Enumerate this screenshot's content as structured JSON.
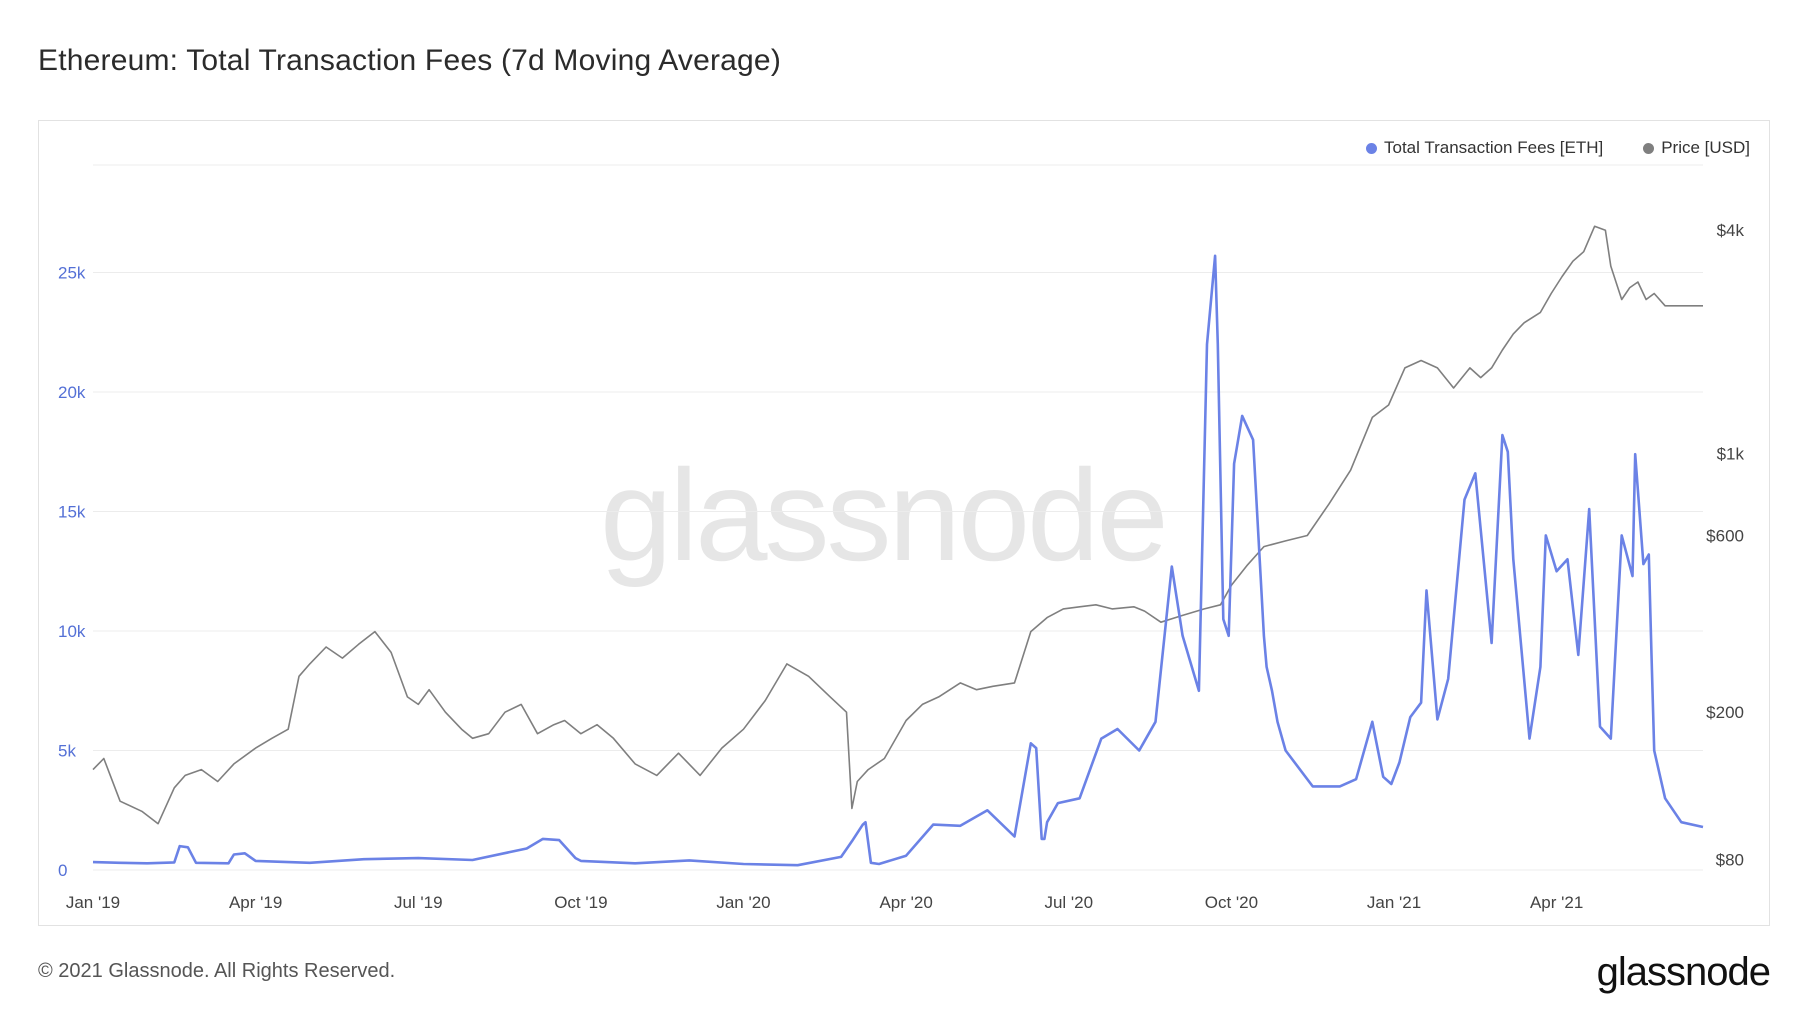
{
  "title": "Ethereum: Total Transaction Fees (7d Moving Average)",
  "watermark": "glassnode",
  "footer": "© 2021 Glassnode. All Rights Reserved.",
  "brand": "glassnode",
  "colors": {
    "fees": "#6b82e6",
    "price": "#7f7f7f",
    "grid": "#ececec",
    "left_axis_text": "#5470d6"
  },
  "chart_data": {
    "type": "line",
    "title": "Ethereum: Total Transaction Fees (7d Moving Average)",
    "x_ticks": [
      "Jan '19",
      "Apr '19",
      "Jul '19",
      "Oct '19",
      "Jan '20",
      "Apr '20",
      "Jul '20",
      "Oct '20",
      "Jan '21",
      "Apr '21"
    ],
    "x_range_months": [
      0,
      29.7
    ],
    "y_left": {
      "label": "Total Transaction Fees [ETH]",
      "ticks": [
        0,
        5000,
        10000,
        15000,
        20000,
        25000
      ],
      "tick_labels": [
        "0",
        "5k",
        "10k",
        "15k",
        "20k",
        "25k"
      ],
      "range": [
        0,
        29500
      ]
    },
    "y_right": {
      "label": "Price [USD]",
      "scale": "log",
      "ticks": [
        80,
        200,
        600,
        1000,
        4000
      ],
      "tick_labels": [
        "$80",
        "$200",
        "$600",
        "$1k",
        "$4k"
      ],
      "range": [
        75,
        6000
      ]
    },
    "legend": [
      {
        "name": "Total Transaction Fees [ETH]",
        "color": "#6b82e6"
      },
      {
        "name": "Price [USD]",
        "color": "#7f7f7f"
      }
    ],
    "series": [
      {
        "name": "Total Transaction Fees [ETH]",
        "axis": "left",
        "x": [
          0,
          0.5,
          1,
          1.5,
          1.6,
          1.75,
          1.9,
          2.5,
          2.6,
          2.8,
          3,
          4,
          5,
          6,
          7,
          8,
          8.3,
          8.6,
          8.9,
          9,
          10,
          11,
          12,
          13,
          13.8,
          14,
          14.2,
          14.25,
          14.35,
          14.5,
          15,
          15.5,
          16,
          16.5,
          17,
          17.3,
          17.4,
          17.5,
          17.55,
          17.6,
          17.8,
          18.2,
          18.6,
          18.9,
          19.3,
          19.6,
          19.9,
          20.1,
          20.4,
          20.55,
          20.7,
          20.75,
          20.85,
          20.95,
          21.05,
          21.2,
          21.4,
          21.6,
          21.65,
          21.75,
          21.85,
          22,
          22.5,
          23,
          23.3,
          23.6,
          23.8,
          23.95,
          24.1,
          24.3,
          24.5,
          24.6,
          24.8,
          25.0,
          25.3,
          25.5,
          25.8,
          26.0,
          26.1,
          26.2,
          26.5,
          26.7,
          26.8,
          27.0,
          27.2,
          27.4,
          27.6,
          27.8,
          28.0,
          28.2,
          28.4,
          28.45,
          28.6,
          28.7,
          28.75,
          28.8,
          29.0,
          29.3,
          29.7
        ],
        "values": [
          330,
          300,
          280,
          320,
          1000,
          950,
          300,
          280,
          650,
          700,
          380,
          300,
          450,
          500,
          420,
          900,
          1300,
          1250,
          500,
          380,
          280,
          400,
          250,
          200,
          550,
          1200,
          1900,
          2000,
          300,
          250,
          600,
          1900,
          1850,
          2500,
          1400,
          5300,
          5100,
          1300,
          1300,
          2000,
          2800,
          3000,
          5500,
          5900,
          5000,
          6200,
          12700,
          9800,
          7500,
          22000,
          25700,
          22000,
          10500,
          9800,
          17000,
          19000,
          18000,
          9800,
          8500,
          7500,
          6200,
          5000,
          3500,
          3500,
          3800,
          6200,
          3900,
          3600,
          4500,
          6400,
          7000,
          11700,
          6300,
          8000,
          15500,
          16600,
          9500,
          18200,
          17500,
          13000,
          5500,
          8500,
          14000,
          12500,
          13000,
          9000,
          15100,
          6000,
          5500,
          14000,
          12300,
          17400,
          12800,
          13200,
          9000,
          5000,
          3000,
          2000,
          1800
        ]
      },
      {
        "name": "Price [USD]",
        "axis": "right",
        "x": [
          0,
          0.2,
          0.5,
          0.9,
          1.2,
          1.5,
          1.7,
          2.0,
          2.3,
          2.6,
          3.0,
          3.3,
          3.6,
          3.8,
          4.0,
          4.3,
          4.6,
          4.9,
          5.2,
          5.5,
          5.8,
          6.0,
          6.2,
          6.5,
          6.8,
          7.0,
          7.3,
          7.6,
          7.9,
          8.2,
          8.5,
          8.7,
          9.0,
          9.3,
          9.6,
          10.0,
          10.4,
          10.8,
          11.2,
          11.6,
          12.0,
          12.4,
          12.8,
          13.2,
          13.6,
          13.9,
          14.0,
          14.1,
          14.3,
          14.6,
          15.0,
          15.3,
          15.6,
          16.0,
          16.3,
          16.6,
          17.0,
          17.3,
          17.6,
          17.9,
          18.2,
          18.5,
          18.8,
          19.2,
          19.4,
          19.7,
          20.1,
          20.5,
          20.8,
          21.0,
          21.3,
          21.6,
          22.0,
          22.4,
          22.8,
          23.2,
          23.6,
          23.9,
          24.2,
          24.5,
          24.8,
          25.1,
          25.4,
          25.6,
          25.8,
          26.0,
          26.2,
          26.4,
          26.7,
          26.9,
          27.1,
          27.3,
          27.5,
          27.7,
          27.9,
          28.0,
          28.2,
          28.35,
          28.5,
          28.65,
          28.8,
          29.0,
          29.2,
          29.5,
          29.7
        ],
        "values": [
          140,
          150,
          115,
          108,
          100,
          125,
          135,
          140,
          130,
          145,
          160,
          170,
          180,
          250,
          270,
          300,
          280,
          305,
          330,
          290,
          220,
          210,
          230,
          200,
          180,
          170,
          175,
          200,
          210,
          175,
          185,
          190,
          175,
          185,
          170,
          145,
          135,
          155,
          135,
          160,
          180,
          215,
          270,
          250,
          220,
          200,
          110,
          130,
          140,
          150,
          190,
          210,
          220,
          240,
          230,
          235,
          240,
          330,
          360,
          380,
          385,
          390,
          380,
          385,
          375,
          350,
          365,
          380,
          390,
          440,
          500,
          560,
          580,
          600,
          730,
          900,
          1250,
          1350,
          1700,
          1780,
          1700,
          1500,
          1700,
          1600,
          1700,
          1900,
          2100,
          2250,
          2400,
          2700,
          3000,
          3300,
          3500,
          4100,
          4000,
          3200,
          2600,
          2800,
          2900,
          2600,
          2700,
          2500,
          2500,
          2500,
          2500
        ]
      }
    ]
  }
}
